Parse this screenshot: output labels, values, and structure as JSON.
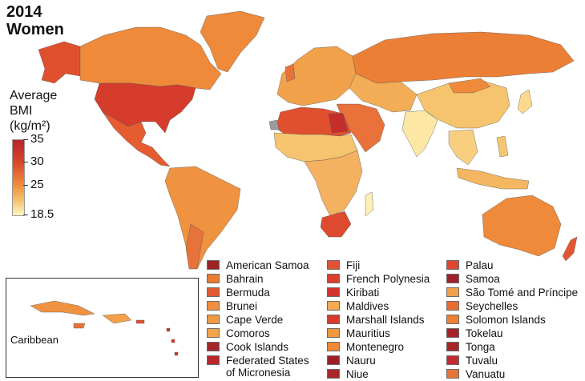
{
  "title": {
    "year": "2014",
    "group": "Women"
  },
  "legend": {
    "title_lines": [
      "Average",
      "BMI",
      "(kg/m²)"
    ],
    "ticks": [
      "35",
      "30",
      "25",
      "18.5"
    ],
    "tick_values": [
      35,
      30,
      25,
      18.5
    ],
    "scale_min": 18.5,
    "scale_max": 35,
    "colors": {
      "high": "#b8232a",
      "mid_high": "#d9482b",
      "mid": "#ee8a3a",
      "mid_low": "#f6c26a",
      "low": "#fdf6c2",
      "no_data": "#9a9a9a"
    }
  },
  "inset": {
    "label": "Caribbean"
  },
  "small_countries": [
    {
      "name": "American Samoa",
      "color": "#9b2326"
    },
    {
      "name": "Bahrain",
      "color": "#ea7b33"
    },
    {
      "name": "Bermuda",
      "color": "#e15a31"
    },
    {
      "name": "Brunei",
      "color": "#ef8f3f"
    },
    {
      "name": "Cape Verde",
      "color": "#f19a45"
    },
    {
      "name": "Comoros",
      "color": "#f3a54e"
    },
    {
      "name": "Cook Islands",
      "color": "#a4262a"
    },
    {
      "name": "Federated States",
      "name_line2": "of Micronesia",
      "color": "#b8262c"
    },
    {
      "name": "Fiji",
      "color": "#e05233"
    },
    {
      "name": "French Polynesia",
      "color": "#d9402d"
    },
    {
      "name": "Kiribati",
      "color": "#cf3530"
    },
    {
      "name": "Maldives",
      "color": "#f3a852"
    },
    {
      "name": "Marshall Islands",
      "color": "#d63a2d"
    },
    {
      "name": "Mauritius",
      "color": "#f0963f"
    },
    {
      "name": "Montenegro",
      "color": "#ee8939"
    },
    {
      "name": "Nauru",
      "color": "#9b1f26"
    },
    {
      "name": "Niue",
      "color": "#a8262a"
    },
    {
      "name": "Palau",
      "color": "#dd4631"
    },
    {
      "name": "Samoa",
      "color": "#9e2228"
    },
    {
      "name": "São Tomé and Príncipe",
      "color": "#f2a04a"
    },
    {
      "name": "Seychelles",
      "color": "#e96d35"
    },
    {
      "name": "Solomon Islands",
      "color": "#ec8236"
    },
    {
      "name": "Tokelau",
      "color": "#a3232a"
    },
    {
      "name": "Tonga",
      "color": "#a62428"
    },
    {
      "name": "Tuvalu",
      "color": "#c12a2e"
    },
    {
      "name": "Vanuatu",
      "color": "#e8743a"
    }
  ]
}
